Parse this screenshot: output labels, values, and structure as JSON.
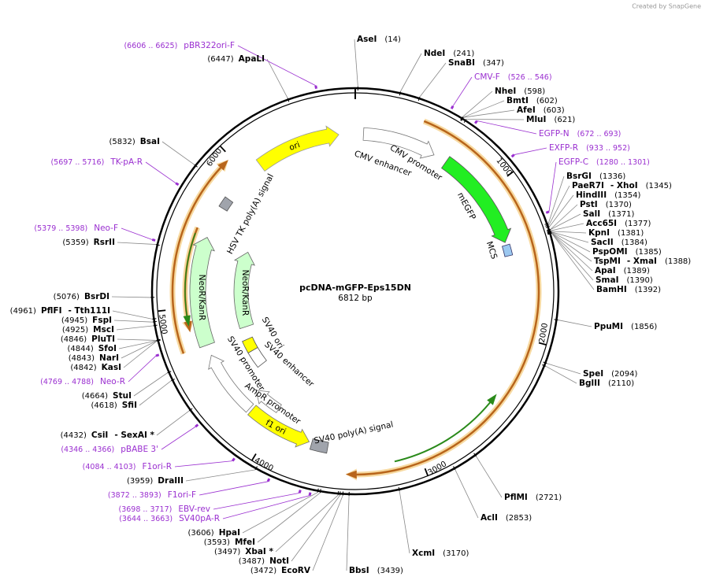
{
  "header": {
    "brand": "Created by SnapGene",
    "title": "pcDNA-mGFP-Eps15DN",
    "size": "6812 bp"
  },
  "sites": [
    {
      "name": "AseI",
      "pos": "(14)"
    },
    {
      "name": "NdeI",
      "pos": "(241)"
    },
    {
      "name": "SnaBI",
      "pos": "(347)"
    },
    {
      "name": "NheI",
      "pos": "(598)"
    },
    {
      "name": "BmtI",
      "pos": "(602)"
    },
    {
      "name": "AfeI",
      "pos": "(603)"
    },
    {
      "name": "MluI",
      "pos": "(621)"
    },
    {
      "name": "BsrGI",
      "pos": "(1336)"
    },
    {
      "name": "PaeR7I",
      "name2": "- XhoI",
      "pos": "(1345)"
    },
    {
      "name": "HindIII",
      "pos": "(1354)"
    },
    {
      "name": "PstI",
      "pos": "(1370)"
    },
    {
      "name": "SalI",
      "pos": "(1371)"
    },
    {
      "name": "Acc65I",
      "pos": "(1377)"
    },
    {
      "name": "KpnI",
      "pos": "(1381)"
    },
    {
      "name": "SacII",
      "pos": "(1384)"
    },
    {
      "name": "PspOMI",
      "pos": "(1385)"
    },
    {
      "name": "TspMI",
      "name2": "- XmaI",
      "pos": "(1388)"
    },
    {
      "name": "ApaI",
      "pos": "(1389)"
    },
    {
      "name": "SmaI",
      "pos": "(1390)"
    },
    {
      "name": "BamHI",
      "pos": "(1392)"
    },
    {
      "name": "PpuMI",
      "pos": "(1856)"
    },
    {
      "name": "SpeI",
      "pos": "(2094)"
    },
    {
      "name": "BglII",
      "pos": "(2110)"
    },
    {
      "name": "PflMI",
      "pos": "(2721)"
    },
    {
      "name": "AclI",
      "pos": "(2853)"
    },
    {
      "name": "XcmI",
      "pos": "(3170)"
    },
    {
      "name": "BbsI",
      "pos": "(3439)"
    },
    {
      "name": "EcoRV",
      "pos": "(3472)"
    },
    {
      "name": "NotI",
      "pos": "(3487)"
    },
    {
      "name": "XbaI *",
      "pos": "(3497)"
    },
    {
      "name": "MfeI",
      "pos": "(3593)"
    },
    {
      "name": "HpaI",
      "pos": "(3606)"
    },
    {
      "name": "DraIII",
      "pos": "(3959)"
    },
    {
      "name": "CsiI",
      "name2": "- SexAI *",
      "pos": "(4432)"
    },
    {
      "name": "SfiI",
      "pos": "(4618)"
    },
    {
      "name": "StuI",
      "pos": "(4664)"
    },
    {
      "name": "KasI",
      "pos": "(4842)"
    },
    {
      "name": "NarI",
      "pos": "(4843)"
    },
    {
      "name": "SfoI",
      "pos": "(4844)"
    },
    {
      "name": "PluTI",
      "pos": "(4846)"
    },
    {
      "name": "MscI",
      "pos": "(4925)"
    },
    {
      "name": "FspI",
      "pos": "(4945)"
    },
    {
      "name": "PflFI",
      "name2": "- Tth111I",
      "pos": "(4961)"
    },
    {
      "name": "BsrDI",
      "pos": "(5076)"
    },
    {
      "name": "RsrII",
      "pos": "(5359)"
    },
    {
      "name": "BsaI",
      "pos": "(5832)"
    },
    {
      "name": "ApaLI",
      "pos": "(6447)"
    }
  ],
  "primers": [
    {
      "name": "pBR322ori-F",
      "range": "(6606 .. 6625)"
    },
    {
      "name": "CMV-F",
      "range": "(526 .. 546)"
    },
    {
      "name": "EGFP-N",
      "range": "(672 .. 693)"
    },
    {
      "name": "EXFP-R",
      "range": "(933 .. 952)"
    },
    {
      "name": "EGFP-C",
      "range": "(1280 .. 1301)"
    },
    {
      "name": "TK-pA-R",
      "range": "(5697 .. 5716)"
    },
    {
      "name": "Neo-F",
      "range": "(5379 .. 5398)"
    },
    {
      "name": "Neo-R",
      "range": "(4769 .. 4788)"
    },
    {
      "name": "pBABE 3'",
      "range": "(4346 .. 4366)"
    },
    {
      "name": "F1ori-R",
      "range": "(4084 .. 4103)"
    },
    {
      "name": "F1ori-F",
      "range": "(3872 .. 3893)"
    },
    {
      "name": "EBV-rev",
      "range": "(3698 .. 3717)"
    },
    {
      "name": "SV40pA-R",
      "range": "(3644 .. 3663)"
    }
  ],
  "features": [
    "ori",
    "CMV enhancer",
    "CMV promoter",
    "mEGFP",
    "MCS",
    "HSV TK poly(A) signal",
    "NeoR/KanR",
    "NeoR/KanR",
    "SV40 ori",
    "SV40 enhancer",
    "SV40 promoter",
    "AmpR promoter",
    "f1 ori",
    "SV40 poly(A) signal"
  ],
  "ticks": [
    "1000",
    "2000",
    "3000",
    "4000",
    "5000",
    "6000"
  ]
}
